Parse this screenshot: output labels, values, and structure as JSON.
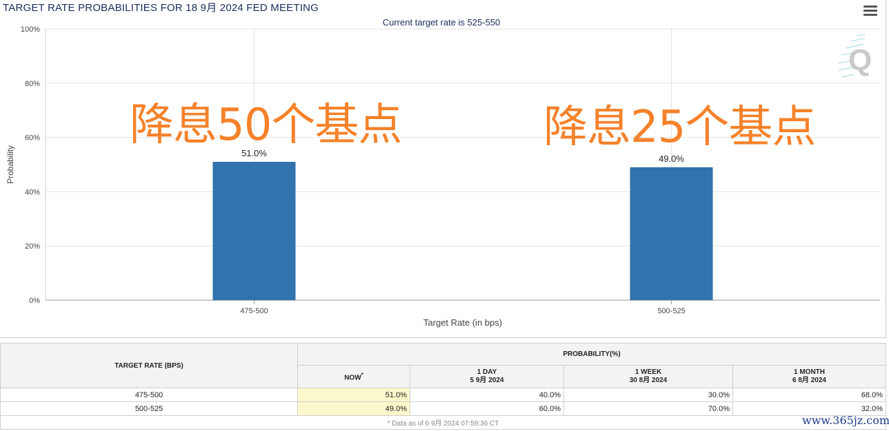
{
  "header": {
    "title": "TARGET RATE PROBABILITIES FOR 18 9月 2024 FED MEETING",
    "subtitle": "Current target rate is 525-550",
    "menu_icon": "hamburger-menu-icon",
    "logo_icon": "q-logo-icon"
  },
  "chart_data": {
    "type": "bar",
    "categories": [
      "475-500",
      "500-525"
    ],
    "values": [
      51.0,
      49.0
    ],
    "data_labels": [
      "51.0%",
      "49.0%"
    ],
    "xlabel": "Target Rate (in bps)",
    "ylabel": "Probability",
    "ylim": [
      0,
      100
    ],
    "yticks": [
      "0%",
      "20%",
      "40%",
      "60%",
      "80%",
      "100%"
    ],
    "grid": true,
    "bar_color": "#3173ac"
  },
  "annotations": {
    "left": "降息50个基点",
    "right": "降息25个基点",
    "color": "#f5822a"
  },
  "table": {
    "rate_header": "TARGET RATE (BPS)",
    "prob_header": "PROBABILITY(%)",
    "columns": [
      {
        "label": "NOW",
        "sub": "",
        "star": "*"
      },
      {
        "label": "1 DAY",
        "sub": "5 9月 2024"
      },
      {
        "label": "1 WEEK",
        "sub": "30 8月 2024"
      },
      {
        "label": "1 MONTH",
        "sub": "6 8月 2024"
      }
    ],
    "rows": [
      {
        "rate": "475-500",
        "values": [
          "51.0%",
          "40.0%",
          "30.0%",
          "68.0%"
        ]
      },
      {
        "rate": "500-525",
        "values": [
          "49.0%",
          "60.0%",
          "70.0%",
          "32.0%"
        ]
      }
    ],
    "footnote": "* Data as of 6 9月 2024 07:59:36 CT"
  },
  "watermark": "www.365jz.com"
}
